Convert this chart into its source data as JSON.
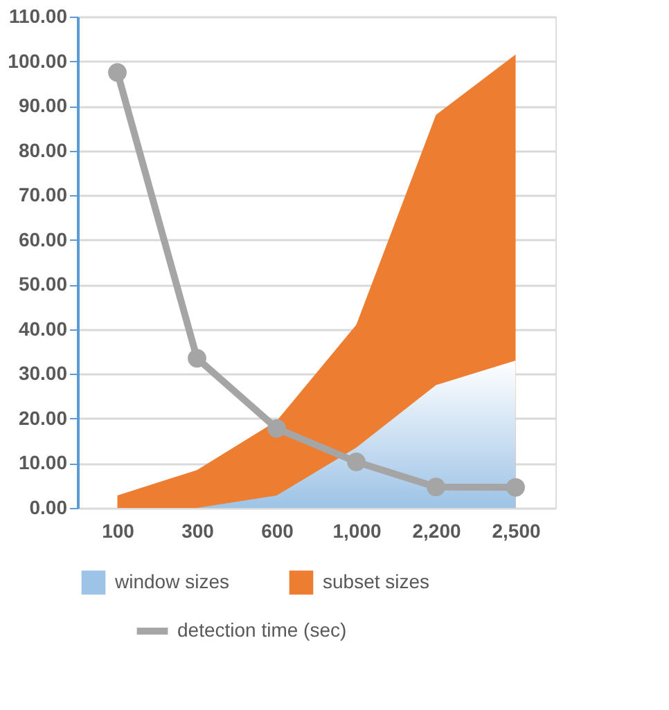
{
  "chart_data": {
    "type": "area",
    "categories": [
      "100",
      "300",
      "600",
      "1,000",
      "2,200",
      "2,500"
    ],
    "series": [
      {
        "name": "window sizes",
        "color": "#9dc3e6",
        "values": [
          0,
          0,
          2.8,
          13.5,
          27.5,
          33
        ]
      },
      {
        "name": "subset sizes",
        "color": "#ed7d31",
        "values": [
          2.8,
          8.5,
          19.5,
          41,
          88,
          101.5
        ]
      },
      {
        "name": "detection time (sec)",
        "type": "line",
        "color": "#a5a5a5",
        "values": [
          97.5,
          33.5,
          17.8,
          10.3,
          4.7,
          4.6
        ],
        "marker": "circle"
      }
    ],
    "ylim": [
      0,
      110
    ],
    "yticks": [
      {
        "value": 0,
        "label": "0.00"
      },
      {
        "value": 10,
        "label": "10.00"
      },
      {
        "value": 20,
        "label": "20.00"
      },
      {
        "value": 30,
        "label": "30.00"
      },
      {
        "value": 40,
        "label": "40.00"
      },
      {
        "value": 50,
        "label": "50.00"
      },
      {
        "value": 60,
        "label": "60.00"
      },
      {
        "value": 70,
        "label": "70.00"
      },
      {
        "value": 80,
        "label": "80.00"
      },
      {
        "value": 90,
        "label": "90.00"
      },
      {
        "value": 100,
        "label": "100.00"
      },
      {
        "value": 110,
        "label": "110.00"
      }
    ],
    "grid": "y",
    "legend": "bottom"
  }
}
